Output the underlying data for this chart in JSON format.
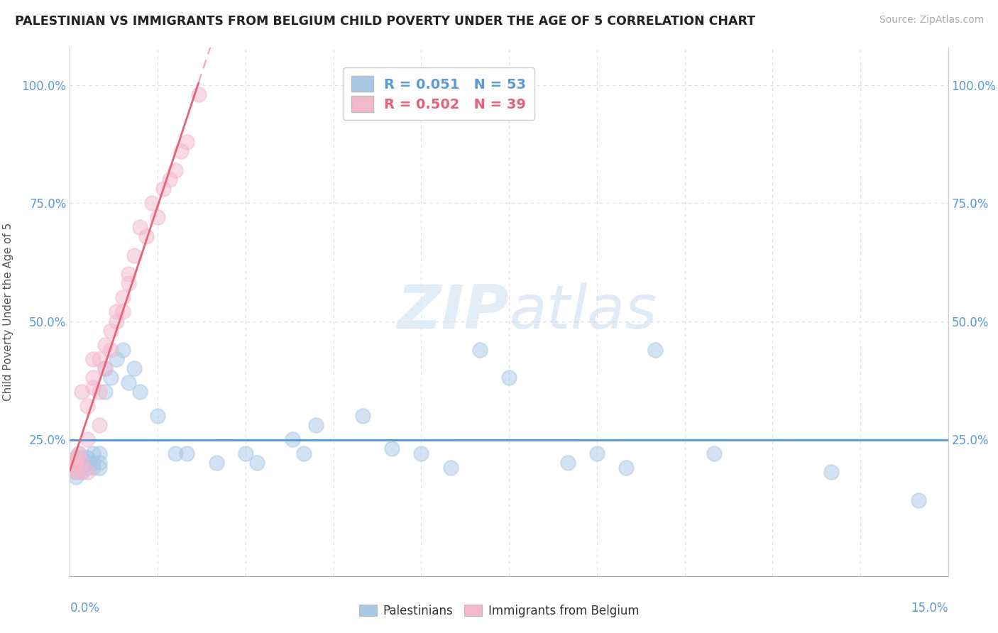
{
  "title": "PALESTINIAN VS IMMIGRANTS FROM BELGIUM CHILD POVERTY UNDER THE AGE OF 5 CORRELATION CHART",
  "source": "Source: ZipAtlas.com",
  "ylabel": "Child Poverty Under the Age of 5",
  "xlim": [
    0.0,
    0.15
  ],
  "ylim": [
    -0.04,
    1.08
  ],
  "legend_R1": "R = 0.051",
  "legend_N1": "N = 53",
  "legend_R2": "R = 0.502",
  "legend_N2": "N = 39",
  "color_blue": "#a8c8e8",
  "color_pink": "#f4b8cc",
  "trend_blue": "#5b9bd5",
  "trend_pink": "#e8607a",
  "trend_pink_ext": "#f0a0b8",
  "watermark_color": "#d5e8f5",
  "grid_color": "#d0e4f0",
  "ytick_vals": [
    0.0,
    0.25,
    0.5,
    0.75,
    1.0
  ],
  "ytick_labels": [
    "",
    "25.0%",
    "50.0%",
    "75.0%",
    "100.0%"
  ],
  "pal_x": [
    0.0008,
    0.0009,
    0.001,
    0.001,
    0.001,
    0.001,
    0.0015,
    0.0015,
    0.002,
    0.002,
    0.002,
    0.002,
    0.0025,
    0.003,
    0.003,
    0.003,
    0.003,
    0.004,
    0.004,
    0.004,
    0.005,
    0.005,
    0.005,
    0.006,
    0.006,
    0.007,
    0.008,
    0.009,
    0.01,
    0.011,
    0.012,
    0.015,
    0.018,
    0.02,
    0.025,
    0.03,
    0.032,
    0.038,
    0.04,
    0.042,
    0.05,
    0.055,
    0.06,
    0.065,
    0.07,
    0.075,
    0.085,
    0.09,
    0.095,
    0.1,
    0.11,
    0.13,
    0.145
  ],
  "pal_y": [
    0.19,
    0.2,
    0.21,
    0.18,
    0.2,
    0.17,
    0.19,
    0.22,
    0.2,
    0.21,
    0.19,
    0.18,
    0.2,
    0.21,
    0.19,
    0.2,
    0.21,
    0.2,
    0.22,
    0.19,
    0.2,
    0.22,
    0.19,
    0.35,
    0.4,
    0.38,
    0.42,
    0.44,
    0.37,
    0.4,
    0.35,
    0.3,
    0.22,
    0.22,
    0.2,
    0.22,
    0.2,
    0.25,
    0.22,
    0.28,
    0.3,
    0.23,
    0.22,
    0.19,
    0.44,
    0.38,
    0.2,
    0.22,
    0.19,
    0.44,
    0.22,
    0.18,
    0.12
  ],
  "bel_x": [
    0.0005,
    0.0008,
    0.001,
    0.001,
    0.001,
    0.0015,
    0.002,
    0.002,
    0.002,
    0.003,
    0.003,
    0.003,
    0.004,
    0.004,
    0.004,
    0.005,
    0.005,
    0.005,
    0.006,
    0.006,
    0.007,
    0.007,
    0.008,
    0.008,
    0.009,
    0.009,
    0.01,
    0.01,
    0.011,
    0.012,
    0.013,
    0.014,
    0.015,
    0.016,
    0.017,
    0.018,
    0.019,
    0.02,
    0.022
  ],
  "bel_y": [
    0.19,
    0.2,
    0.18,
    0.2,
    0.21,
    0.22,
    0.35,
    0.18,
    0.2,
    0.25,
    0.32,
    0.18,
    0.38,
    0.42,
    0.36,
    0.42,
    0.35,
    0.28,
    0.45,
    0.4,
    0.48,
    0.44,
    0.52,
    0.5,
    0.55,
    0.52,
    0.6,
    0.58,
    0.64,
    0.7,
    0.68,
    0.75,
    0.72,
    0.78,
    0.8,
    0.82,
    0.86,
    0.88,
    0.98
  ]
}
